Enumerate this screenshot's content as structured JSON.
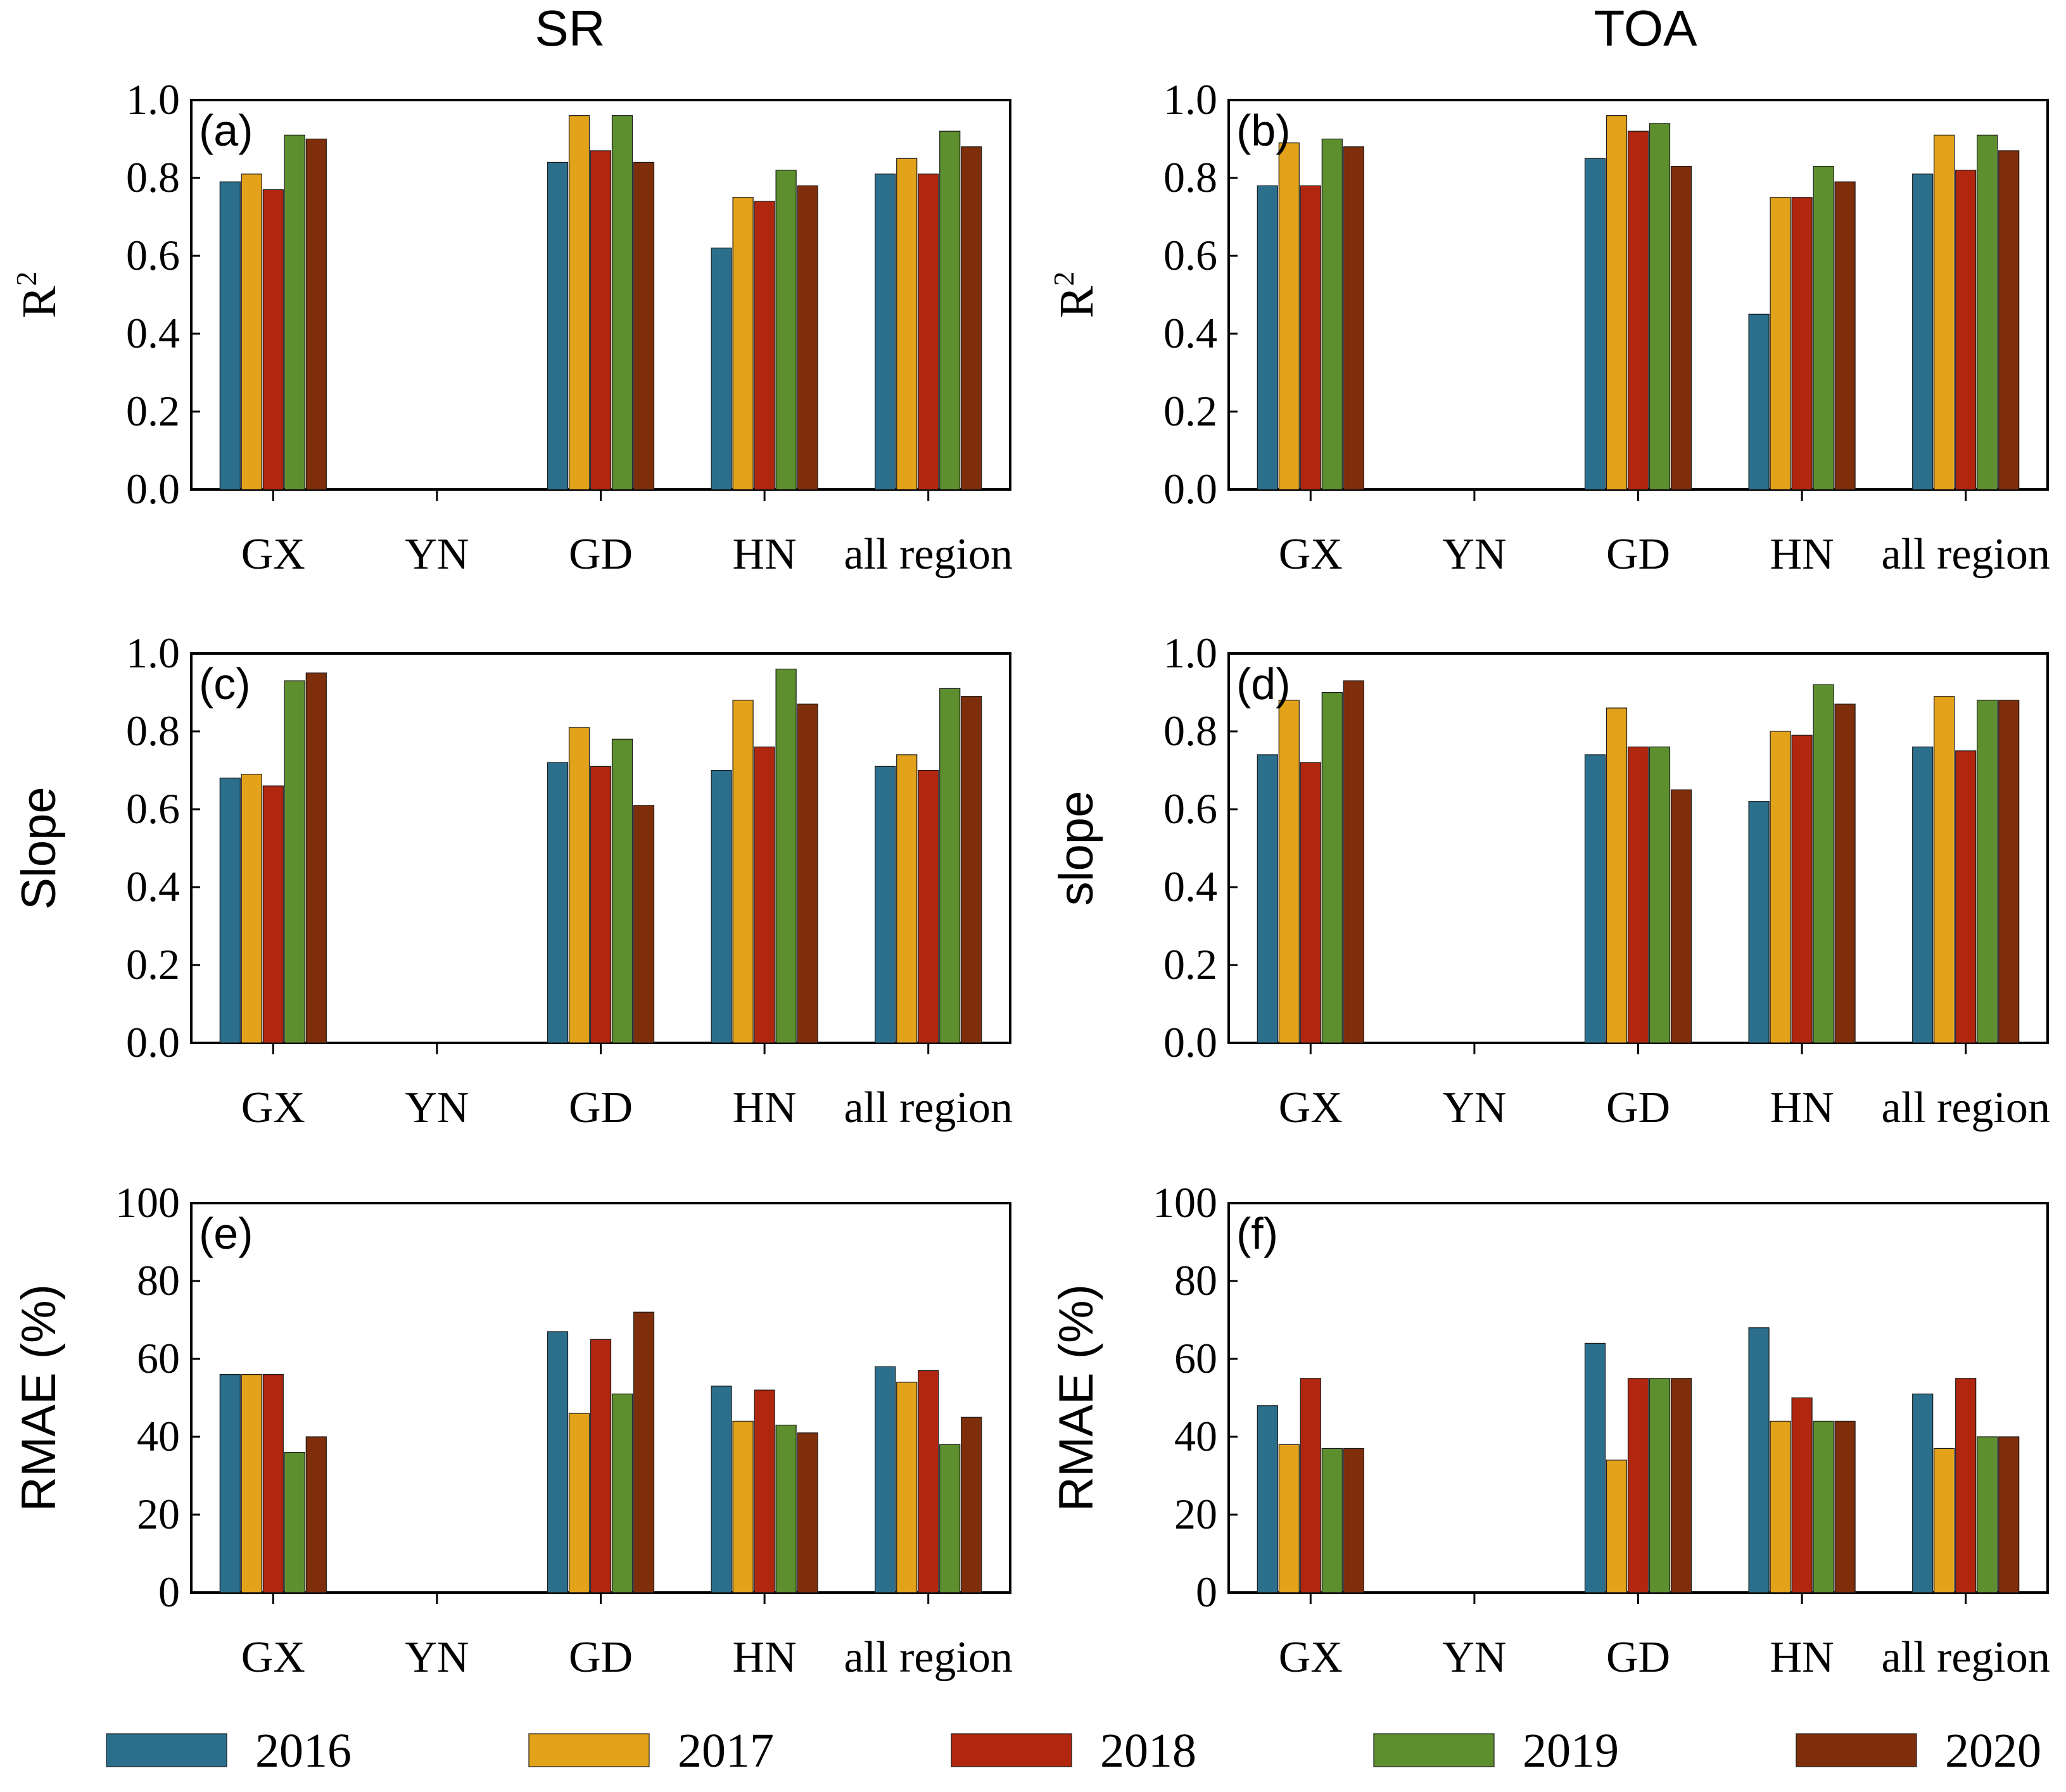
{
  "columns": {
    "left": "SR",
    "right": "TOA"
  },
  "colors": {
    "2016": "#2b6f8c",
    "2017": "#e2a21a",
    "2018": "#b0260f",
    "2019": "#5e8f2f",
    "2020": "#7f2e0b"
  },
  "legend": [
    "2016",
    "2017",
    "2018",
    "2019",
    "2020"
  ],
  "chart_data": [
    {
      "panel": "(a)",
      "column": "SR",
      "type": "bar",
      "ylabel": "R",
      "ylabel_superscript": "2",
      "ylim": [
        0,
        1.0
      ],
      "yticks": [
        "0.0",
        "0.2",
        "0.4",
        "0.6",
        "0.8",
        "1.0"
      ],
      "categories": [
        "GX",
        "YN",
        "GD",
        "HN",
        "all region"
      ],
      "series": [
        {
          "name": "2016",
          "values": [
            0.79,
            null,
            0.84,
            0.62,
            0.81
          ]
        },
        {
          "name": "2017",
          "values": [
            0.81,
            null,
            0.96,
            0.75,
            0.85
          ]
        },
        {
          "name": "2018",
          "values": [
            0.77,
            null,
            0.87,
            0.74,
            0.81
          ]
        },
        {
          "name": "2019",
          "values": [
            0.91,
            null,
            0.96,
            0.82,
            0.92
          ]
        },
        {
          "name": "2020",
          "values": [
            0.9,
            null,
            0.84,
            0.78,
            0.88
          ]
        }
      ]
    },
    {
      "panel": "(b)",
      "column": "TOA",
      "type": "bar",
      "ylabel": "R",
      "ylabel_superscript": "2",
      "ylim": [
        0,
        1.0
      ],
      "yticks": [
        "0.0",
        "0.2",
        "0.4",
        "0.6",
        "0.8",
        "1.0"
      ],
      "categories": [
        "GX",
        "YN",
        "GD",
        "HN",
        "all region"
      ],
      "series": [
        {
          "name": "2016",
          "values": [
            0.78,
            null,
            0.85,
            0.45,
            0.81
          ]
        },
        {
          "name": "2017",
          "values": [
            0.89,
            null,
            0.96,
            0.75,
            0.91
          ]
        },
        {
          "name": "2018",
          "values": [
            0.78,
            null,
            0.92,
            0.75,
            0.82
          ]
        },
        {
          "name": "2019",
          "values": [
            0.9,
            null,
            0.94,
            0.83,
            0.91
          ]
        },
        {
          "name": "2020",
          "values": [
            0.88,
            null,
            0.83,
            0.79,
            0.87
          ]
        }
      ]
    },
    {
      "panel": "(c)",
      "column": "SR",
      "type": "bar",
      "ylabel": "Slope",
      "ylabel_superscript": "",
      "ylim": [
        0,
        1.0
      ],
      "yticks": [
        "0.0",
        "0.2",
        "0.4",
        "0.6",
        "0.8",
        "1.0"
      ],
      "categories": [
        "GX",
        "YN",
        "GD",
        "HN",
        "all region"
      ],
      "series": [
        {
          "name": "2016",
          "values": [
            0.68,
            null,
            0.72,
            0.7,
            0.71
          ]
        },
        {
          "name": "2017",
          "values": [
            0.69,
            null,
            0.81,
            0.88,
            0.74
          ]
        },
        {
          "name": "2018",
          "values": [
            0.66,
            null,
            0.71,
            0.76,
            0.7
          ]
        },
        {
          "name": "2019",
          "values": [
            0.93,
            null,
            0.78,
            0.96,
            0.91
          ]
        },
        {
          "name": "2020",
          "values": [
            0.95,
            null,
            0.61,
            0.87,
            0.89
          ]
        }
      ]
    },
    {
      "panel": "(d)",
      "column": "TOA",
      "type": "bar",
      "ylabel": "slope",
      "ylabel_superscript": "",
      "ylim": [
        0,
        1.0
      ],
      "yticks": [
        "0.0",
        "0.2",
        "0.4",
        "0.6",
        "0.8",
        "1.0"
      ],
      "categories": [
        "GX",
        "YN",
        "GD",
        "HN",
        "all region"
      ],
      "series": [
        {
          "name": "2016",
          "values": [
            0.74,
            null,
            0.74,
            0.62,
            0.76
          ]
        },
        {
          "name": "2017",
          "values": [
            0.88,
            null,
            0.86,
            0.8,
            0.89
          ]
        },
        {
          "name": "2018",
          "values": [
            0.72,
            null,
            0.76,
            0.79,
            0.75
          ]
        },
        {
          "name": "2019",
          "values": [
            0.9,
            null,
            0.76,
            0.92,
            0.88
          ]
        },
        {
          "name": "2020",
          "values": [
            0.93,
            null,
            0.65,
            0.87,
            0.88
          ]
        }
      ]
    },
    {
      "panel": "(e)",
      "column": "SR",
      "type": "bar",
      "ylabel": "RMAE (%)",
      "ylabel_superscript": "",
      "ylim": [
        0,
        100
      ],
      "yticks": [
        "0",
        "20",
        "40",
        "60",
        "80",
        "100"
      ],
      "categories": [
        "GX",
        "YN",
        "GD",
        "HN",
        "all region"
      ],
      "series": [
        {
          "name": "2016",
          "values": [
            56,
            null,
            67,
            53,
            58
          ]
        },
        {
          "name": "2017",
          "values": [
            56,
            null,
            46,
            44,
            54
          ]
        },
        {
          "name": "2018",
          "values": [
            56,
            null,
            65,
            52,
            57
          ]
        },
        {
          "name": "2019",
          "values": [
            36,
            null,
            51,
            43,
            38
          ]
        },
        {
          "name": "2020",
          "values": [
            40,
            null,
            72,
            41,
            45
          ]
        }
      ]
    },
    {
      "panel": "(f)",
      "column": "TOA",
      "type": "bar",
      "ylabel": "RMAE (%)",
      "ylabel_superscript": "",
      "ylim": [
        0,
        100
      ],
      "yticks": [
        "0",
        "20",
        "40",
        "60",
        "80",
        "100"
      ],
      "categories": [
        "GX",
        "YN",
        "GD",
        "HN",
        "all region"
      ],
      "series": [
        {
          "name": "2016",
          "values": [
            48,
            null,
            64,
            68,
            51
          ]
        },
        {
          "name": "2017",
          "values": [
            38,
            null,
            34,
            44,
            37
          ]
        },
        {
          "name": "2018",
          "values": [
            55,
            null,
            55,
            50,
            55
          ]
        },
        {
          "name": "2019",
          "values": [
            37,
            null,
            55,
            44,
            40
          ]
        },
        {
          "name": "2020",
          "values": [
            37,
            null,
            55,
            44,
            40
          ]
        }
      ]
    }
  ]
}
